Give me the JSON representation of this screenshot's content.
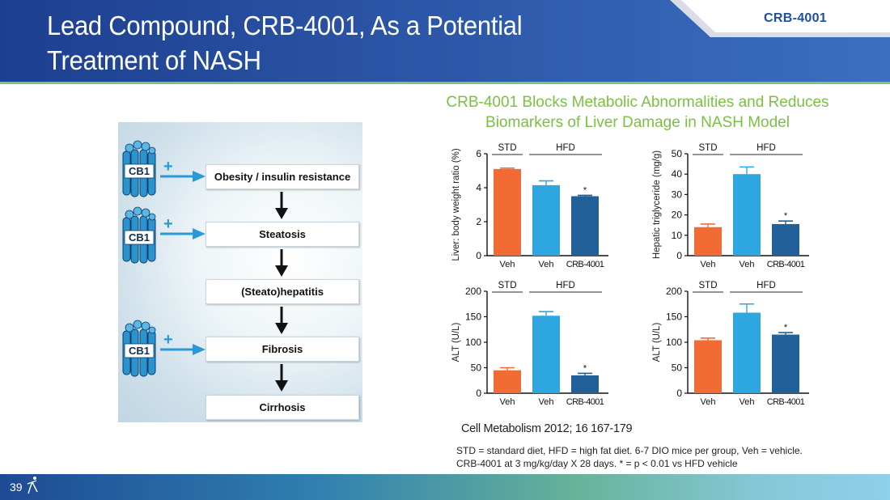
{
  "header": {
    "title_line1": "Lead Compound, CRB-4001, As a Potential",
    "title_line2": "Treatment of NASH",
    "tab_label": "CRB-4001"
  },
  "pathway": {
    "receptor_label": "CB1",
    "plus_sign": "+",
    "steps": [
      "Obesity / insulin resistance",
      "Steatosis",
      "(Steato)hepatitis",
      "Fibrosis",
      "Cirrhosis"
    ]
  },
  "panel": {
    "title_line1": "CRB-4001 Blocks Metabolic Abnormalities and Reduces",
    "title_line2": "Biomarkers of Liver Damage in NASH Model",
    "citation": "Cell Metabolism 2012; 16 167-179",
    "footnote_line1": "STD = standard diet, HFD = high fat diet. 6-7 DIO mice per group, Veh = vehicle.",
    "footnote_line2": "CRB-4001 at 3 mg/kg/day X 28 days. * = p < 0.01 vs HFD vehicle"
  },
  "footer": {
    "page_number": "39"
  },
  "colors": {
    "std": "#f26b35",
    "hfd_veh": "#2ea6e0",
    "crb": "#22609a"
  },
  "chart_data": [
    {
      "type": "bar",
      "ylabel": "Liver: body weight ratio (%)",
      "categories": [
        "Veh",
        "Veh",
        "CRB-4001"
      ],
      "groups": [
        "STD",
        "HFD"
      ],
      "values": [
        5.1,
        4.15,
        3.5
      ],
      "errors": [
        0.05,
        0.25,
        0.05
      ],
      "significant": [
        false,
        false,
        true
      ],
      "ylim": [
        0,
        6
      ],
      "yticks": [
        0,
        2,
        4,
        6
      ]
    },
    {
      "type": "bar",
      "ylabel": "Hepatic triglyceride (mg/g)",
      "categories": [
        "Veh",
        "Veh",
        "CRB-4001"
      ],
      "groups": [
        "STD",
        "HFD"
      ],
      "values": [
        14,
        40,
        15.5
      ],
      "errors": [
        1.5,
        3.5,
        1.5
      ],
      "significant": [
        false,
        false,
        true
      ],
      "ylim": [
        0,
        50
      ],
      "yticks": [
        0,
        10,
        20,
        30,
        40,
        50
      ]
    },
    {
      "type": "bar",
      "ylabel": "ALT (U/L)",
      "categories": [
        "Veh",
        "Veh",
        "CRB-4001"
      ],
      "groups": [
        "STD",
        "HFD"
      ],
      "values": [
        45,
        152,
        35
      ],
      "errors": [
        5,
        8,
        4
      ],
      "significant": [
        false,
        false,
        true
      ],
      "ylim": [
        0,
        200
      ],
      "yticks": [
        0,
        50,
        100,
        150,
        200
      ]
    },
    {
      "type": "bar",
      "ylabel": "ALT (U/L)",
      "categories": [
        "Veh",
        "Veh",
        "CRB-4001"
      ],
      "groups": [
        "STD",
        "HFD"
      ],
      "values": [
        104,
        158,
        115
      ],
      "errors": [
        4,
        17,
        4
      ],
      "significant": [
        false,
        false,
        true
      ],
      "ylim": [
        0,
        200
      ],
      "yticks": [
        0,
        50,
        100,
        150,
        200
      ]
    }
  ]
}
